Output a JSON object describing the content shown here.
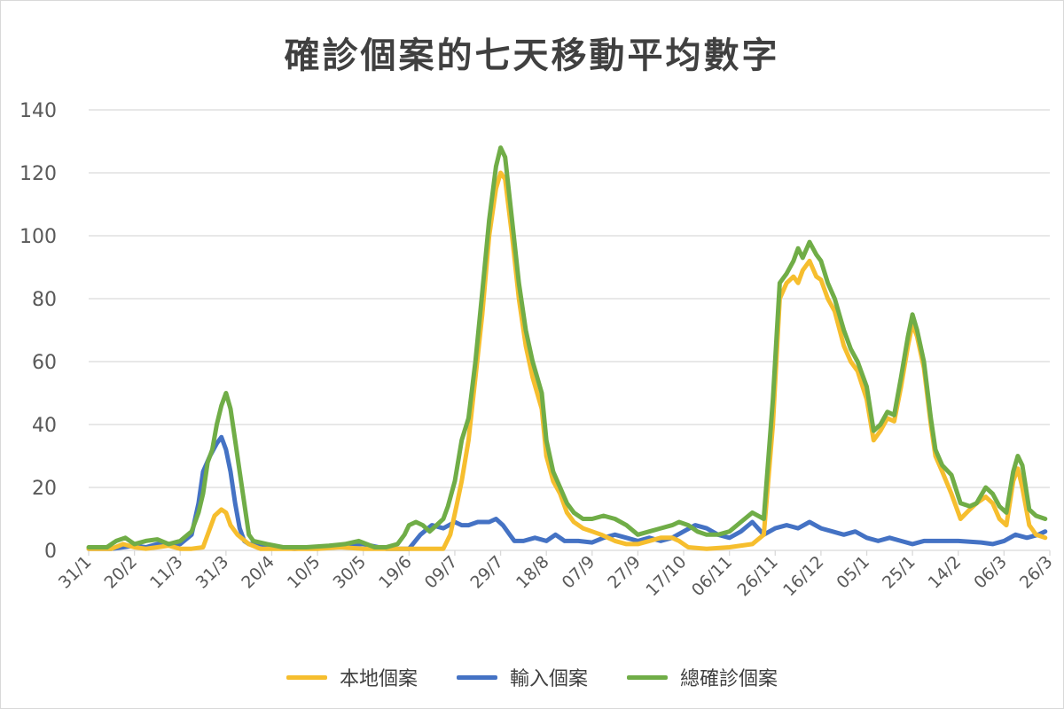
{
  "chart_data": {
    "type": "line",
    "title": "確診個案的七天移動平均數字",
    "xlabel": "",
    "ylabel": "",
    "ylim": [
      0,
      140
    ],
    "yticks": [
      0,
      20,
      40,
      60,
      80,
      100,
      120,
      140
    ],
    "grid": true,
    "legend_position": "bottom",
    "x_tick_labels": [
      "31/1",
      "20/2",
      "11/3",
      "31/3",
      "20/4",
      "10/5",
      "30/5",
      "19/6",
      "09/7",
      "29/7",
      "18/8",
      "07/9",
      "27/9",
      "17/10",
      "06/11",
      "26/11",
      "16/12",
      "05/1",
      "25/1",
      "14/2",
      "06/3",
      "26/3"
    ],
    "x_range_days": [
      0,
      420
    ],
    "series": [
      {
        "name": "本地個案",
        "color": "#F6BE2E",
        "points": [
          [
            0,
            0.5
          ],
          [
            10,
            0.5
          ],
          [
            15,
            2
          ],
          [
            20,
            1
          ],
          [
            25,
            0.5
          ],
          [
            30,
            1
          ],
          [
            35,
            1.5
          ],
          [
            40,
            0.5
          ],
          [
            45,
            0.5
          ],
          [
            50,
            1
          ],
          [
            52,
            5
          ],
          [
            55,
            11
          ],
          [
            58,
            13
          ],
          [
            60,
            12
          ],
          [
            62,
            8
          ],
          [
            65,
            5
          ],
          [
            70,
            2
          ],
          [
            75,
            0.5
          ],
          [
            80,
            0.5
          ],
          [
            100,
            0.5
          ],
          [
            110,
            1
          ],
          [
            120,
            0.5
          ],
          [
            130,
            0.5
          ],
          [
            140,
            0.5
          ],
          [
            155,
            0.5
          ],
          [
            158,
            5
          ],
          [
            161,
            15
          ],
          [
            163,
            22
          ],
          [
            166,
            35
          ],
          [
            169,
            55
          ],
          [
            172,
            75
          ],
          [
            175,
            100
          ],
          [
            178,
            115
          ],
          [
            180,
            120
          ],
          [
            182,
            118
          ],
          [
            185,
            100
          ],
          [
            188,
            80
          ],
          [
            191,
            65
          ],
          [
            194,
            55
          ],
          [
            198,
            45
          ],
          [
            200,
            30
          ],
          [
            203,
            22
          ],
          [
            206,
            18
          ],
          [
            209,
            12
          ],
          [
            212,
            9
          ],
          [
            216,
            7
          ],
          [
            220,
            6
          ],
          [
            224,
            5
          ],
          [
            230,
            3
          ],
          [
            235,
            2
          ],
          [
            240,
            2
          ],
          [
            245,
            3
          ],
          [
            250,
            4
          ],
          [
            255,
            4
          ],
          [
            258,
            3
          ],
          [
            262,
            1
          ],
          [
            270,
            0.5
          ],
          [
            280,
            1
          ],
          [
            290,
            2
          ],
          [
            295,
            5
          ],
          [
            299,
            40
          ],
          [
            302,
            80
          ],
          [
            305,
            85
          ],
          [
            308,
            87
          ],
          [
            310,
            85
          ],
          [
            312,
            89
          ],
          [
            315,
            92
          ],
          [
            318,
            87
          ],
          [
            320,
            86
          ],
          [
            323,
            80
          ],
          [
            326,
            76
          ],
          [
            330,
            65
          ],
          [
            333,
            60
          ],
          [
            336,
            57
          ],
          [
            340,
            48
          ],
          [
            343,
            35
          ],
          [
            346,
            38
          ],
          [
            349,
            42
          ],
          [
            352,
            41
          ],
          [
            355,
            52
          ],
          [
            358,
            65
          ],
          [
            360,
            72
          ],
          [
            362,
            68
          ],
          [
            365,
            58
          ],
          [
            368,
            40
          ],
          [
            370,
            30
          ],
          [
            373,
            25
          ],
          [
            377,
            18
          ],
          [
            381,
            10
          ],
          [
            385,
            13
          ],
          [
            388,
            15
          ],
          [
            392,
            17
          ],
          [
            395,
            15
          ],
          [
            398,
            10
          ],
          [
            401,
            8
          ],
          [
            404,
            22
          ],
          [
            406,
            26
          ],
          [
            408,
            20
          ],
          [
            411,
            8
          ],
          [
            414,
            5
          ],
          [
            418,
            4
          ]
        ]
      },
      {
        "name": "輸入個案",
        "color": "#4472C4",
        "points": [
          [
            0,
            0.5
          ],
          [
            10,
            0.5
          ],
          [
            15,
            1
          ],
          [
            20,
            1.5
          ],
          [
            25,
            1
          ],
          [
            30,
            2
          ],
          [
            35,
            1.5
          ],
          [
            40,
            2
          ],
          [
            45,
            5
          ],
          [
            48,
            15
          ],
          [
            50,
            25
          ],
          [
            53,
            30
          ],
          [
            56,
            34
          ],
          [
            58,
            36
          ],
          [
            60,
            32
          ],
          [
            62,
            25
          ],
          [
            64,
            15
          ],
          [
            66,
            7
          ],
          [
            68,
            3
          ],
          [
            70,
            2
          ],
          [
            75,
            2
          ],
          [
            80,
            1
          ],
          [
            90,
            0.5
          ],
          [
            100,
            1
          ],
          [
            110,
            1.5
          ],
          [
            115,
            2
          ],
          [
            120,
            2
          ],
          [
            130,
            0.5
          ],
          [
            140,
            0.5
          ],
          [
            145,
            5
          ],
          [
            150,
            8
          ],
          [
            155,
            7
          ],
          [
            160,
            9
          ],
          [
            163,
            8
          ],
          [
            166,
            8
          ],
          [
            170,
            9
          ],
          [
            175,
            9
          ],
          [
            178,
            10
          ],
          [
            181,
            8
          ],
          [
            184,
            5
          ],
          [
            186,
            3
          ],
          [
            190,
            3
          ],
          [
            195,
            4
          ],
          [
            200,
            3
          ],
          [
            204,
            5
          ],
          [
            208,
            3
          ],
          [
            214,
            3
          ],
          [
            220,
            2.5
          ],
          [
            225,
            4
          ],
          [
            230,
            5
          ],
          [
            235,
            4
          ],
          [
            240,
            3
          ],
          [
            245,
            4
          ],
          [
            250,
            3
          ],
          [
            255,
            4
          ],
          [
            260,
            6
          ],
          [
            265,
            8
          ],
          [
            270,
            7
          ],
          [
            275,
            5
          ],
          [
            280,
            4
          ],
          [
            285,
            6
          ],
          [
            290,
            9
          ],
          [
            295,
            5
          ],
          [
            300,
            7
          ],
          [
            305,
            8
          ],
          [
            310,
            7
          ],
          [
            315,
            9
          ],
          [
            320,
            7
          ],
          [
            325,
            6
          ],
          [
            330,
            5
          ],
          [
            335,
            6
          ],
          [
            340,
            4
          ],
          [
            345,
            3
          ],
          [
            350,
            4
          ],
          [
            355,
            3
          ],
          [
            360,
            2
          ],
          [
            365,
            3
          ],
          [
            370,
            3
          ],
          [
            380,
            3
          ],
          [
            390,
            2.5
          ],
          [
            395,
            2
          ],
          [
            400,
            3
          ],
          [
            405,
            5
          ],
          [
            410,
            4
          ],
          [
            415,
            5
          ],
          [
            418,
            6
          ]
        ]
      },
      {
        "name": "總確診個案",
        "color": "#70AD47",
        "points": [
          [
            0,
            1
          ],
          [
            8,
            1
          ],
          [
            12,
            3
          ],
          [
            16,
            4
          ],
          [
            20,
            2
          ],
          [
            25,
            3
          ],
          [
            30,
            3.5
          ],
          [
            35,
            2
          ],
          [
            40,
            3
          ],
          [
            45,
            6
          ],
          [
            48,
            12
          ],
          [
            50,
            18
          ],
          [
            52,
            28
          ],
          [
            54,
            32
          ],
          [
            56,
            40
          ],
          [
            58,
            46
          ],
          [
            60,
            50
          ],
          [
            62,
            45
          ],
          [
            64,
            35
          ],
          [
            66,
            25
          ],
          [
            68,
            15
          ],
          [
            70,
            5
          ],
          [
            72,
            3
          ],
          [
            78,
            2
          ],
          [
            85,
            1
          ],
          [
            95,
            1
          ],
          [
            105,
            1.5
          ],
          [
            112,
            2
          ],
          [
            118,
            3
          ],
          [
            125,
            1
          ],
          [
            130,
            1
          ],
          [
            135,
            2
          ],
          [
            138,
            5
          ],
          [
            140,
            8
          ],
          [
            143,
            9
          ],
          [
            146,
            8
          ],
          [
            149,
            6
          ],
          [
            152,
            8
          ],
          [
            155,
            10
          ],
          [
            157,
            14
          ],
          [
            160,
            22
          ],
          [
            163,
            35
          ],
          [
            166,
            42
          ],
          [
            169,
            60
          ],
          [
            172,
            82
          ],
          [
            175,
            105
          ],
          [
            178,
            122
          ],
          [
            180,
            128
          ],
          [
            182,
            125
          ],
          [
            185,
            105
          ],
          [
            188,
            85
          ],
          [
            191,
            70
          ],
          [
            194,
            60
          ],
          [
            198,
            50
          ],
          [
            200,
            35
          ],
          [
            203,
            25
          ],
          [
            206,
            20
          ],
          [
            209,
            15
          ],
          [
            212,
            12
          ],
          [
            216,
            10
          ],
          [
            220,
            10
          ],
          [
            225,
            11
          ],
          [
            230,
            10
          ],
          [
            235,
            8
          ],
          [
            240,
            5
          ],
          [
            245,
            6
          ],
          [
            250,
            7
          ],
          [
            255,
            8
          ],
          [
            258,
            9
          ],
          [
            262,
            8
          ],
          [
            266,
            6
          ],
          [
            270,
            5
          ],
          [
            275,
            5
          ],
          [
            280,
            6
          ],
          [
            285,
            9
          ],
          [
            290,
            12
          ],
          [
            295,
            10
          ],
          [
            299,
            48
          ],
          [
            302,
            85
          ],
          [
            305,
            88
          ],
          [
            308,
            92
          ],
          [
            310,
            96
          ],
          [
            312,
            93
          ],
          [
            315,
            98
          ],
          [
            318,
            94
          ],
          [
            320,
            92
          ],
          [
            323,
            85
          ],
          [
            326,
            80
          ],
          [
            330,
            70
          ],
          [
            333,
            64
          ],
          [
            336,
            60
          ],
          [
            340,
            52
          ],
          [
            343,
            38
          ],
          [
            346,
            40
          ],
          [
            349,
            44
          ],
          [
            352,
            43
          ],
          [
            355,
            55
          ],
          [
            358,
            68
          ],
          [
            360,
            75
          ],
          [
            362,
            70
          ],
          [
            365,
            60
          ],
          [
            368,
            42
          ],
          [
            370,
            32
          ],
          [
            373,
            27
          ],
          [
            377,
            24
          ],
          [
            381,
            15
          ],
          [
            385,
            14
          ],
          [
            388,
            15
          ],
          [
            392,
            20
          ],
          [
            395,
            18
          ],
          [
            398,
            14
          ],
          [
            401,
            12
          ],
          [
            404,
            25
          ],
          [
            406,
            30
          ],
          [
            408,
            27
          ],
          [
            411,
            13
          ],
          [
            414,
            11
          ],
          [
            418,
            10
          ]
        ]
      }
    ]
  }
}
